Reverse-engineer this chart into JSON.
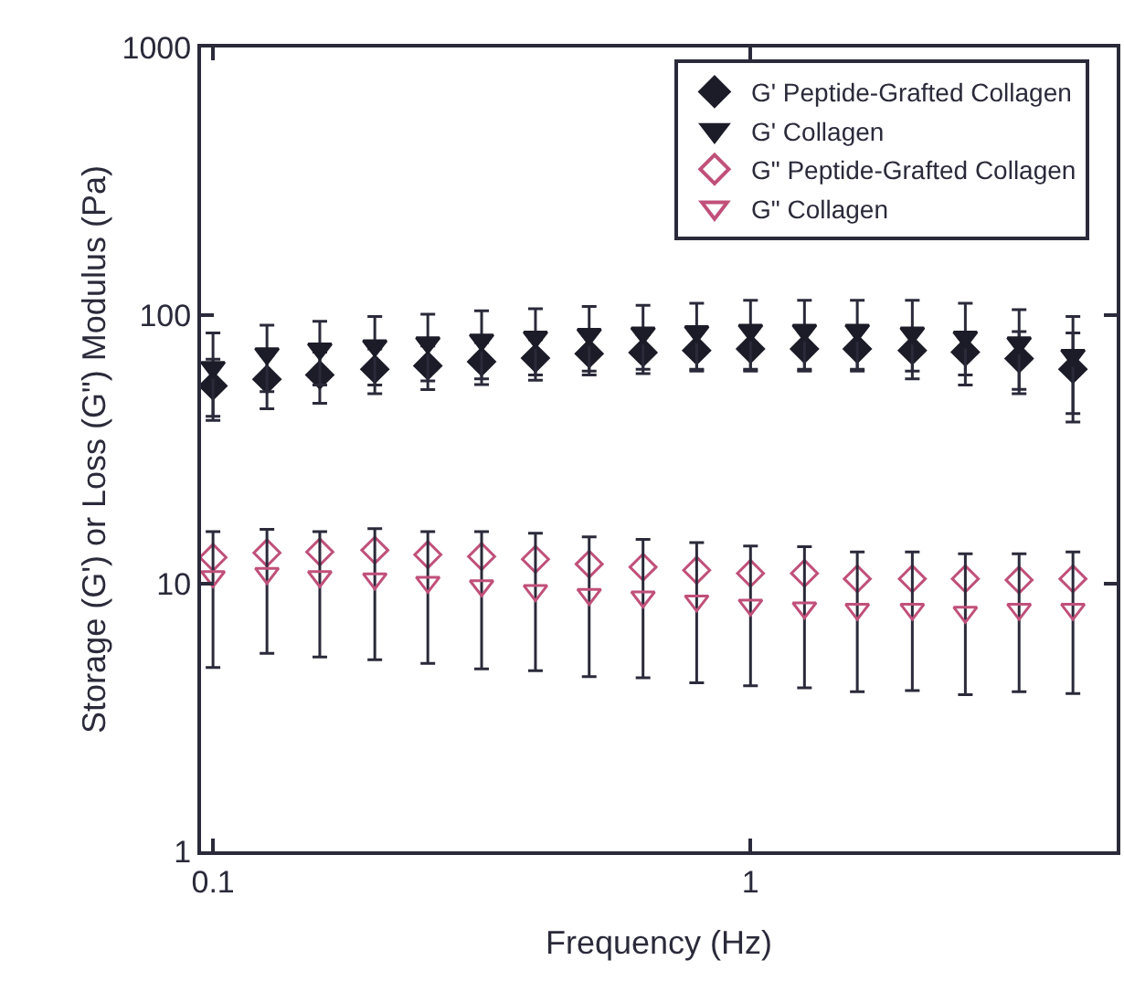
{
  "chart_data": {
    "type": "scatter",
    "xlabel": "Frequency (Hz)",
    "ylabel": "Storage (G') or Loss (G\") Modulus (Pa)",
    "x": [
      0.1,
      0.126,
      0.158,
      0.2,
      0.251,
      0.316,
      0.398,
      0.501,
      0.631,
      0.794,
      1,
      1.26,
      1.58,
      2,
      2.51,
      3.16,
      3.98
    ],
    "log": "xy",
    "xlim": [
      0.095,
      4.8
    ],
    "xticks": [
      0.1,
      1
    ],
    "ylim": [
      1,
      1000
    ],
    "yticks": [
      1,
      10,
      100,
      1000
    ],
    "legend": "top right",
    "series": [
      {
        "name": "G' Peptide-Grafted Collagen",
        "color": "#1c1c28",
        "marker": "diamond",
        "values": [
          54.6,
          57.8,
          60,
          63,
          64.9,
          67.2,
          69.3,
          72,
          72.7,
          74,
          75,
          75,
          75,
          74,
          73,
          69,
          63
        ],
        "errors": [
          14,
          13,
          13,
          12,
          12,
          12,
          12,
          12,
          12,
          12,
          12,
          12,
          12,
          12,
          13,
          18,
          23
        ]
      },
      {
        "name": "G' Collagen",
        "color": "#1c1c28",
        "marker": "triangle",
        "values": [
          64,
          72,
          75,
          77,
          79,
          81,
          83,
          85,
          86,
          87,
          88,
          88,
          88,
          86,
          83,
          79,
          71
        ],
        "errors": [
          22,
          20,
          20,
          22,
          22,
          23,
          23,
          23,
          23,
          24,
          26,
          26,
          26,
          28,
          28,
          26,
          28
        ]
      },
      {
        "name": "G\" Peptide-Grafted Collagen",
        "color": "#c0507a",
        "marker": "diamond",
        "values": [
          12.5,
          13.0,
          13.1,
          13.3,
          12.8,
          12.6,
          12.3,
          11.8,
          11.5,
          11.2,
          10.9,
          10.9,
          10.4,
          10.4,
          10.4,
          10.3,
          10.4
        ]
      },
      {
        "name": "G\" Collagen",
        "color": "#c0507a",
        "marker": "triangle",
        "values": [
          10.6,
          10.9,
          10.6,
          10.4,
          10.1,
          9.8,
          9.4,
          9.1,
          8.9,
          8.6,
          8.3,
          8.1,
          8.0,
          8.0,
          7.8,
          8.0,
          8.0
        ],
        "errors": [
          [
            4.85,
            15.6
          ],
          [
            5.48,
            15.9
          ],
          [
            5.31,
            15.6
          ],
          [
            5.19,
            16.0
          ],
          [
            5.03,
            15.6
          ],
          [
            4.8,
            15.6
          ],
          [
            4.72,
            15.4
          ],
          [
            4.49,
            14.9
          ],
          [
            4.44,
            14.6
          ],
          [
            4.26,
            14.2
          ],
          [
            4.15,
            13.8
          ],
          [
            4.08,
            13.7
          ],
          [
            3.94,
            13.1
          ],
          [
            3.98,
            13.1
          ],
          [
            3.84,
            12.9
          ],
          [
            3.94,
            12.9
          ],
          [
            3.88,
            13.1
          ]
        ]
      }
    ]
  }
}
